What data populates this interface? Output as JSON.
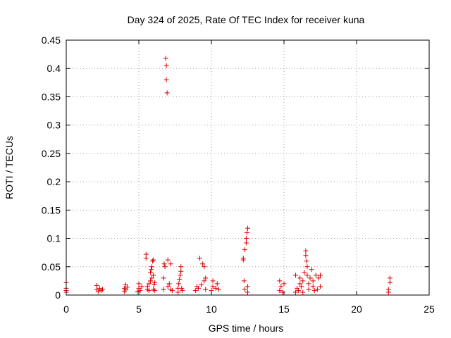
{
  "chart_data": {
    "type": "scatter",
    "title": "Day 324 of 2025, Rate Of TEC Index for receiver kuna",
    "xlabel": "GPS time / hours",
    "ylabel": "ROTI / TECUs",
    "xlim": [
      0,
      25
    ],
    "ylim": [
      0,
      0.45
    ],
    "x_ticks": [
      0,
      5,
      10,
      15,
      20,
      25
    ],
    "x_tick_labels": [
      "0",
      "5",
      "10",
      "15",
      "20",
      "25"
    ],
    "y_ticks": [
      0,
      0.05,
      0.1,
      0.15,
      0.2,
      0.25,
      0.3,
      0.35,
      0.4,
      0.45
    ],
    "y_tick_labels": [
      "0",
      "0.05",
      "0.1",
      "0.15",
      "0.2",
      "0.25",
      "0.3",
      "0.35",
      "0.4",
      "0.45"
    ],
    "grid": true,
    "marker": "plus",
    "marker_color": "#dd0000",
    "points": [
      [
        0.0,
        0.008
      ],
      [
        0.0,
        0.012
      ],
      [
        0.0,
        0.005
      ],
      [
        0.0,
        0.022
      ],
      [
        2.1,
        0.01
      ],
      [
        2.1,
        0.017
      ],
      [
        2.2,
        0.006
      ],
      [
        2.3,
        0.012
      ],
      [
        2.4,
        0.008
      ],
      [
        2.5,
        0.01
      ],
      [
        4.0,
        0.006
      ],
      [
        4.0,
        0.012
      ],
      [
        4.1,
        0.018
      ],
      [
        4.1,
        0.009
      ],
      [
        4.2,
        0.014
      ],
      [
        4.9,
        0.006
      ],
      [
        5.0,
        0.012
      ],
      [
        5.0,
        0.02
      ],
      [
        5.1,
        0.008
      ],
      [
        5.2,
        0.015
      ],
      [
        5.5,
        0.072
      ],
      [
        5.5,
        0.065
      ],
      [
        5.6,
        0.01
      ],
      [
        5.6,
        0.015
      ],
      [
        5.7,
        0.008
      ],
      [
        5.7,
        0.02
      ],
      [
        5.8,
        0.025
      ],
      [
        5.8,
        0.04
      ],
      [
        5.85,
        0.045
      ],
      [
        5.9,
        0.03
      ],
      [
        5.9,
        0.05
      ],
      [
        5.95,
        0.06
      ],
      [
        6.0,
        0.062
      ],
      [
        6.0,
        0.035
      ],
      [
        6.0,
        0.01
      ],
      [
        6.05,
        0.018
      ],
      [
        6.1,
        0.022
      ],
      [
        6.1,
        0.008
      ],
      [
        6.7,
        0.01
      ],
      [
        6.7,
        0.03
      ],
      [
        6.75,
        0.055
      ],
      [
        6.8,
        0.05
      ],
      [
        6.85,
        0.418
      ],
      [
        6.9,
        0.405
      ],
      [
        6.9,
        0.38
      ],
      [
        6.95,
        0.357
      ],
      [
        7.0,
        0.062
      ],
      [
        7.0,
        0.015
      ],
      [
        7.1,
        0.02
      ],
      [
        7.2,
        0.055
      ],
      [
        7.2,
        0.01
      ],
      [
        7.3,
        0.008
      ],
      [
        7.7,
        0.005
      ],
      [
        7.7,
        0.012
      ],
      [
        7.75,
        0.02
      ],
      [
        7.8,
        0.028
      ],
      [
        7.85,
        0.035
      ],
      [
        7.9,
        0.042
      ],
      [
        7.9,
        0.05
      ],
      [
        7.95,
        0.012
      ],
      [
        8.0,
        0.008
      ],
      [
        8.9,
        0.008
      ],
      [
        9.0,
        0.015
      ],
      [
        9.1,
        0.012
      ],
      [
        9.2,
        0.065
      ],
      [
        9.3,
        0.018
      ],
      [
        9.4,
        0.055
      ],
      [
        9.5,
        0.05
      ],
      [
        9.5,
        0.025
      ],
      [
        9.6,
        0.01
      ],
      [
        9.6,
        0.03
      ],
      [
        10.0,
        0.008
      ],
      [
        10.1,
        0.015
      ],
      [
        10.1,
        0.025
      ],
      [
        10.3,
        0.012
      ],
      [
        10.4,
        0.02
      ],
      [
        10.5,
        0.01
      ],
      [
        12.2,
        0.065
      ],
      [
        12.2,
        0.062
      ],
      [
        12.25,
        0.025
      ],
      [
        12.3,
        0.01
      ],
      [
        12.3,
        0.08
      ],
      [
        12.4,
        0.092
      ],
      [
        12.4,
        0.1
      ],
      [
        12.45,
        0.11
      ],
      [
        12.5,
        0.118
      ],
      [
        12.5,
        0.005
      ],
      [
        12.5,
        0.015
      ],
      [
        14.7,
        0.008
      ],
      [
        14.7,
        0.025
      ],
      [
        14.8,
        0.015
      ],
      [
        14.9,
        0.005
      ],
      [
        15.0,
        0.02
      ],
      [
        15.8,
        0.005
      ],
      [
        15.8,
        0.035
      ],
      [
        15.9,
        0.012
      ],
      [
        16.0,
        0.008
      ],
      [
        16.1,
        0.02
      ],
      [
        16.1,
        0.03
      ],
      [
        16.2,
        0.015
      ],
      [
        16.3,
        0.005
      ],
      [
        16.3,
        0.025
      ],
      [
        16.4,
        0.04
      ],
      [
        16.5,
        0.078
      ],
      [
        16.5,
        0.07
      ],
      [
        16.55,
        0.06
      ],
      [
        16.6,
        0.05
      ],
      [
        16.6,
        0.035
      ],
      [
        16.7,
        0.02
      ],
      [
        16.7,
        0.01
      ],
      [
        16.8,
        0.03
      ],
      [
        16.9,
        0.045
      ],
      [
        17.0,
        0.015
      ],
      [
        17.0,
        0.025
      ],
      [
        17.1,
        0.008
      ],
      [
        17.2,
        0.035
      ],
      [
        17.3,
        0.01
      ],
      [
        17.4,
        0.03
      ],
      [
        17.5,
        0.035
      ],
      [
        17.5,
        0.015
      ],
      [
        22.2,
        0.005
      ],
      [
        22.2,
        0.01
      ],
      [
        22.3,
        0.022
      ],
      [
        22.3,
        0.03
      ]
    ]
  }
}
